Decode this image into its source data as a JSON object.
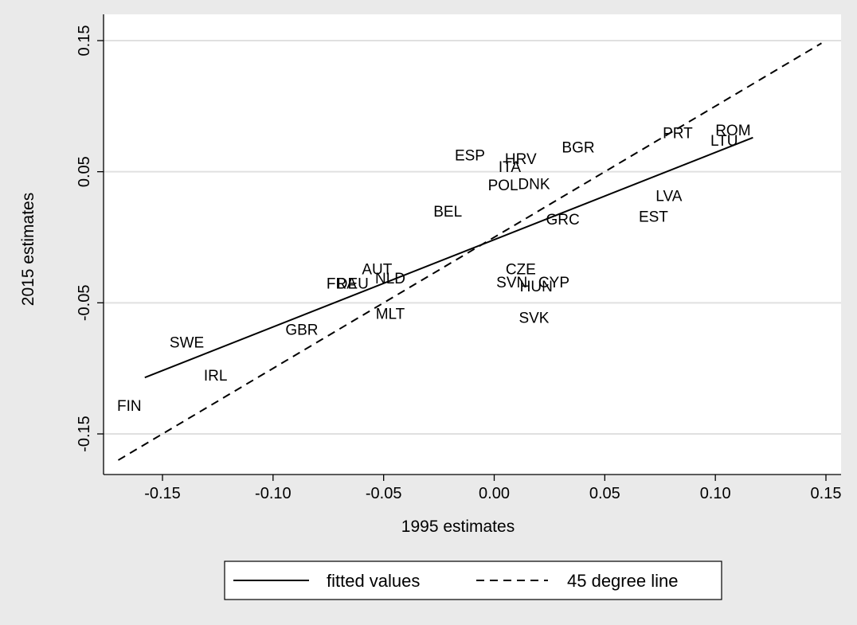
{
  "chart_data": {
    "type": "scatter",
    "xlabel": "1995 estimates",
    "ylabel": "2015 estimates",
    "xlim": [
      -0.17,
      0.15
    ],
    "ylim": [
      -0.17,
      0.17
    ],
    "xticks": [
      -0.15,
      -0.1,
      -0.05,
      0.0,
      0.05,
      0.1,
      0.15
    ],
    "xtick_labels": [
      "-0.15",
      "-0.10",
      "-0.05",
      "0.00",
      "0.05",
      "0.10",
      "0.15"
    ],
    "yticks": [
      -0.15,
      -0.05,
      0.05,
      0.15
    ],
    "ytick_labels": [
      "-0.15",
      "-0.05",
      "0.05",
      "0.15"
    ],
    "grid": true,
    "points": [
      {
        "label": "FIN",
        "x": -0.165,
        "y": -0.128
      },
      {
        "label": "IRL",
        "x": -0.126,
        "y": -0.105
      },
      {
        "label": "SWE",
        "x": -0.139,
        "y": -0.08
      },
      {
        "label": "GBR",
        "x": -0.087,
        "y": -0.07
      },
      {
        "label": "MLT",
        "x": -0.047,
        "y": -0.058
      },
      {
        "label": "FRA",
        "x": -0.069,
        "y": -0.035
      },
      {
        "label": "DEU",
        "x": -0.064,
        "y": -0.035
      },
      {
        "label": "AUT",
        "x": -0.053,
        "y": -0.024
      },
      {
        "label": "NLD",
        "x": -0.047,
        "y": -0.031
      },
      {
        "label": "BEL",
        "x": -0.021,
        "y": 0.02
      },
      {
        "label": "ESP",
        "x": -0.011,
        "y": 0.063
      },
      {
        "label": "ITA",
        "x": 0.007,
        "y": 0.054
      },
      {
        "label": "HRV",
        "x": 0.012,
        "y": 0.06
      },
      {
        "label": "POL",
        "x": 0.004,
        "y": 0.04
      },
      {
        "label": "DNK",
        "x": 0.018,
        "y": 0.041
      },
      {
        "label": "BGR",
        "x": 0.038,
        "y": 0.069
      },
      {
        "label": "GRC",
        "x": 0.031,
        "y": 0.014
      },
      {
        "label": "CZE",
        "x": 0.012,
        "y": -0.024
      },
      {
        "label": "SVN",
        "x": 0.008,
        "y": -0.034
      },
      {
        "label": "HUN",
        "x": 0.019,
        "y": -0.037
      },
      {
        "label": "CYP",
        "x": 0.027,
        "y": -0.034
      },
      {
        "label": "SVK",
        "x": 0.018,
        "y": -0.061
      },
      {
        "label": "LVA",
        "x": 0.079,
        "y": 0.032
      },
      {
        "label": "EST",
        "x": 0.072,
        "y": 0.016
      },
      {
        "label": "PRT",
        "x": 0.083,
        "y": 0.08
      },
      {
        "label": "ROM",
        "x": 0.108,
        "y": 0.082
      },
      {
        "label": "LTU",
        "x": 0.104,
        "y": 0.074
      }
    ],
    "lines": [
      {
        "name": "fitted values",
        "style": "solid",
        "x": [
          -0.158,
          0.117
        ],
        "y": [
          -0.107,
          0.076
        ]
      },
      {
        "name": "45 degree line",
        "style": "dashed",
        "x": [
          -0.17,
          0.148
        ],
        "y": [
          -0.17,
          0.148
        ]
      }
    ],
    "legend": {
      "position": "bottom",
      "entries": [
        "fitted values",
        "45 degree line"
      ]
    }
  },
  "colors": {
    "outer_bg": "#eaeaea",
    "plot_bg": "#ffffff",
    "grid": "#e0e0e0",
    "ink": "#000000"
  }
}
